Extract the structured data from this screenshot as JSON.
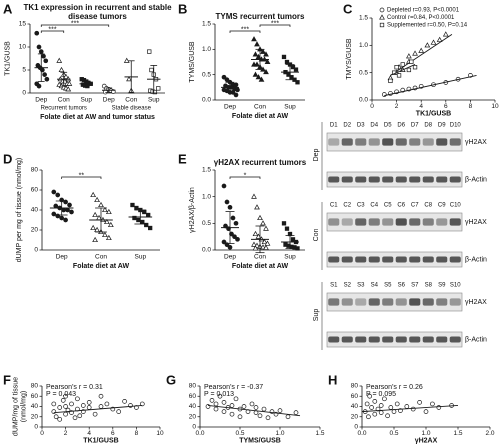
{
  "chart_data": [
    {
      "type": "dotplot",
      "panel": "A",
      "title": "TK1 expression in recurrent and stable disease tumors",
      "ylabel": "TK1/GUSB",
      "xlabel": "Folate diet at AW and tumor status",
      "categories": [
        "Dep",
        "Con",
        "Sup",
        "Dep",
        "Con",
        "Sup"
      ],
      "values": [
        [
          13,
          10,
          9,
          8,
          7,
          6,
          5.5,
          5,
          4,
          3,
          2,
          1.5
        ],
        [
          7,
          5,
          4,
          3.5,
          3,
          3,
          2.5,
          2.5,
          2,
          2,
          1.8,
          1.5,
          1.2,
          1,
          0.8
        ],
        [
          3,
          2.8,
          2.5,
          2.2,
          2,
          1.8,
          1.6,
          1.5
        ],
        [
          1.5,
          1,
          0.8,
          0.5,
          0.3,
          0.2
        ],
        [
          7,
          3,
          0.5
        ],
        [
          9,
          5,
          4,
          3,
          1,
          0.5,
          0.3,
          0.2
        ]
      ],
      "means": [
        5.5,
        3,
        2,
        0.6,
        3.5,
        3
      ],
      "sd": [
        3,
        1.5,
        0.6,
        0.5,
        3.5,
        3
      ],
      "markers": [
        "circle",
        "triangle",
        "square",
        "circle",
        "triangle",
        "square"
      ],
      "filled": [
        true,
        false,
        true,
        false,
        false,
        false
      ],
      "ylim": [
        0,
        15
      ],
      "yticks": [
        0,
        5,
        10,
        15
      ],
      "groups": [
        {
          "label": "Recurrent tumors",
          "from": 0,
          "to": 2
        },
        {
          "label": "Stable disease",
          "from": 3,
          "to": 5
        }
      ],
      "significance": [
        {
          "pair": [
            0,
            1
          ],
          "label": "***"
        },
        {
          "pair": [
            0,
            3
          ],
          "label": "***"
        }
      ],
      "color": "#1a1a1a"
    },
    {
      "type": "dotplot",
      "panel": "B",
      "title": "TYMS recurrent tumors",
      "ylabel": "TYMS/GUSB",
      "xlabel": "Folate diet at AW",
      "categories": [
        "Dep",
        "Con",
        "Sup"
      ],
      "values": [
        [
          0.45,
          0.4,
          0.35,
          0.3,
          0.3,
          0.28,
          0.25,
          0.25,
          0.22,
          0.2,
          0.2,
          0.18,
          0.15,
          0.15,
          0.1
        ],
        [
          1.2,
          1.1,
          1.0,
          0.95,
          0.9,
          0.9,
          0.85,
          0.8,
          0.8,
          0.75,
          0.7,
          0.7,
          0.65,
          0.6,
          0.55,
          0.5,
          0.45,
          0.4
        ],
        [
          0.85,
          0.75,
          0.7,
          0.65,
          0.6,
          0.55,
          0.5,
          0.45,
          0.4,
          0.35
        ]
      ],
      "means": [
        0.25,
        0.8,
        0.55
      ],
      "sd": [
        0.1,
        0.2,
        0.15
      ],
      "markers": [
        "circle",
        "triangle",
        "square"
      ],
      "filled": [
        true,
        true,
        true
      ],
      "ylim": [
        0,
        1.5
      ],
      "yticks": [
        {
          "value": 0,
          "label": "0.0"
        },
        0.5,
        {
          "value": 1,
          "label": "1.0"
        },
        1.5
      ],
      "significance": [
        {
          "pair": [
            0,
            1
          ],
          "label": "***"
        },
        {
          "pair": [
            1,
            2
          ],
          "label": "***"
        }
      ],
      "color": "#1a1a1a"
    },
    {
      "type": "scatter",
      "panel": "C",
      "ylabel": "TMYS/GUSB",
      "xlabel": "TK1/GUSB",
      "xlim": [
        0,
        10
      ],
      "xticks": [
        0,
        2,
        4,
        6,
        8,
        10
      ],
      "ylim": [
        0,
        1.5
      ],
      "yticks": [
        {
          "value": 0,
          "label": "0.0"
        },
        0.5,
        {
          "value": 1,
          "label": "1.0"
        },
        1.5
      ],
      "legend": "upper left",
      "series": [
        {
          "name": "Depleted r=0.93, P<0.0001",
          "marker": "circle",
          "x": [
            1,
            1.5,
            2,
            2.5,
            3,
            3.5,
            4,
            5,
            6,
            7,
            8
          ],
          "values": [
            0.1,
            0.12,
            0.15,
            0.18,
            0.2,
            0.22,
            0.25,
            0.28,
            0.32,
            0.38,
            0.45
          ],
          "fit": {
            "x": [
              1,
              8.5
            ],
            "values": [
              0.08,
              0.45
            ]
          }
        },
        {
          "name": "Control r=0.84, P<0.0001",
          "marker": "triangle",
          "x": [
            1.5,
            2,
            2.2,
            2.5,
            3,
            3,
            3.5,
            4,
            4.5,
            5,
            5.5,
            6
          ],
          "values": [
            0.4,
            0.5,
            0.6,
            0.55,
            0.7,
            0.8,
            0.85,
            0.9,
            1.0,
            1.05,
            1.1,
            1.2
          ],
          "fit": {
            "x": [
              1.5,
              6.5
            ],
            "values": [
              0.45,
              1.2
            ]
          }
        },
        {
          "name": "Supplemented r=0.50, P=0.14",
          "marker": "square",
          "x": [
            1.5,
            1.8,
            2,
            2.2,
            2.5,
            3,
            3.2,
            3.5
          ],
          "values": [
            0.35,
            0.5,
            0.6,
            0.45,
            0.65,
            0.55,
            0.7,
            0.6
          ],
          "fit": {
            "x": [
              1.5,
              3.5
            ],
            "values": [
              0.45,
              0.65
            ]
          }
        }
      ],
      "color": "#1a1a1a"
    },
    {
      "type": "dotplot",
      "panel": "D",
      "ylabel": "dUMP per mg of tissue (nmol/mg)",
      "xlabel": "Folate diet at AW",
      "categories": [
        "Dep",
        "Con",
        "Sup"
      ],
      "values": [
        [
          58,
          55,
          50,
          48,
          45,
          44,
          42,
          40,
          40,
          38,
          36,
          34,
          32,
          30
        ],
        [
          55,
          50,
          45,
          40,
          38,
          35,
          32,
          30,
          28,
          25,
          22,
          20,
          18,
          15,
          12,
          10
        ],
        [
          45,
          42,
          40,
          38,
          35,
          32,
          30,
          28,
          25,
          22
        ]
      ],
      "means": [
        42,
        30,
        33
      ],
      "sd": [
        7,
        12,
        7
      ],
      "markers": [
        "circle",
        "triangle",
        "square"
      ],
      "filled": [
        true,
        false,
        true
      ],
      "ylim": [
        0,
        80
      ],
      "yticks": [
        0,
        20,
        40,
        60,
        80
      ],
      "significance": [
        {
          "pair": [
            0,
            1
          ],
          "label": "**"
        }
      ],
      "color": "#1a1a1a"
    },
    {
      "type": "dotplot",
      "panel": "E",
      "title": "γH2AX recurrent tumors",
      "ylabel": "γH2AX/β-Actin",
      "xlabel": "Folate diet at AW",
      "categories": [
        "Dep",
        "Con",
        "Sup"
      ],
      "values": [
        [
          1.2,
          0.9,
          0.8,
          0.6,
          0.5,
          0.45,
          0.4,
          0.3,
          0.25,
          0.2,
          0.15,
          0.1,
          0.05
        ],
        [
          1.0,
          0.8,
          0.6,
          0.5,
          0.4,
          0.3,
          0.25,
          0.2,
          0.15,
          0.12,
          0.1,
          0.08,
          0.06,
          0.05,
          0.04,
          0.03
        ],
        [
          0.5,
          0.4,
          0.3,
          0.2,
          0.15,
          0.1,
          0.08,
          0.06,
          0.05,
          0.03
        ]
      ],
      "means": [
        0.42,
        0.2,
        0.15
      ],
      "sd": [
        0.3,
        0.25,
        0.12
      ],
      "markers": [
        "circle",
        "triangle",
        "square"
      ],
      "filled": [
        true,
        false,
        true
      ],
      "ylim": [
        0,
        1.5
      ],
      "yticks": [
        {
          "value": 0,
          "label": "0.0"
        },
        0.5,
        {
          "value": 1,
          "label": "1.0"
        },
        1.5
      ],
      "significance": [
        {
          "pair": [
            0,
            1
          ],
          "label": "*"
        }
      ],
      "color": "#1a1a1a"
    },
    {
      "type": "scatter",
      "panel": "F",
      "ylabel": "dUMP/mg of tissue (nmol/mg)",
      "xlabel": "TK1/GUSB",
      "xlim": [
        0,
        10
      ],
      "xticks": [
        0,
        2,
        4,
        6,
        8,
        10
      ],
      "ylim": [
        0,
        80
      ],
      "yticks": [
        0,
        20,
        40,
        60,
        80
      ],
      "annotations": [
        "Pearson's r = 0.31",
        "P = 0.043"
      ],
      "series": [
        {
          "marker": "circle",
          "x": [
            1,
            1,
            1.2,
            1.5,
            1.5,
            1.8,
            2,
            2,
            2,
            2.2,
            2.5,
            2.5,
            2.8,
            3,
            3,
            3.2,
            3.5,
            3.5,
            4,
            4,
            4.5,
            5,
            5,
            5.5,
            6,
            6.5,
            7,
            7.5,
            8,
            8.5
          ],
          "values": [
            30,
            45,
            20,
            38,
            15,
            52,
            25,
            40,
            60,
            33,
            28,
            45,
            18,
            35,
            55,
            22,
            42,
            30,
            38,
            48,
            25,
            40,
            60,
            45,
            35,
            30,
            50,
            42,
            38,
            45
          ],
          "fit": {
            "x": [
              1,
              8.5
            ],
            "values": [
              28,
              42
            ]
          }
        }
      ],
      "color": "#1a1a1a"
    },
    {
      "type": "scatter",
      "panel": "G",
      "xlabel": "TYMS/GUSB",
      "xlim": [
        0,
        1.5
      ],
      "xticks": [
        {
          "value": 0,
          "label": "0.0"
        },
        0.5,
        {
          "value": 1,
          "label": "1.0"
        },
        1.5
      ],
      "ylim": [
        0,
        80
      ],
      "yticks": [
        0,
        20,
        40,
        60,
        80
      ],
      "annotations": [
        "Pearson's r = -0.37",
        "P = 0.013"
      ],
      "series": [
        {
          "marker": "circle",
          "x": [
            0.1,
            0.15,
            0.2,
            0.2,
            0.25,
            0.3,
            0.3,
            0.35,
            0.4,
            0.4,
            0.45,
            0.5,
            0.5,
            0.55,
            0.6,
            0.65,
            0.7,
            0.7,
            0.75,
            0.8,
            0.85,
            0.9,
            0.95,
            1.0,
            1.1,
            1.2
          ],
          "values": [
            40,
            52,
            35,
            45,
            60,
            30,
            48,
            38,
            42,
            25,
            55,
            35,
            20,
            40,
            30,
            45,
            28,
            38,
            22,
            35,
            18,
            30,
            25,
            32,
            20,
            28
          ],
          "fit": {
            "x": [
              0.1,
              1.25
            ],
            "values": [
              42,
              22
            ]
          }
        }
      ],
      "color": "#1a1a1a"
    },
    {
      "type": "scatter",
      "panel": "H",
      "xlabel": "γH2AX",
      "xlim": [
        0,
        2
      ],
      "xticks": [
        {
          "value": 0,
          "label": "0.0"
        },
        0.5,
        {
          "value": 1,
          "label": "1.0"
        },
        1.5,
        {
          "value": 2,
          "label": "2.0"
        }
      ],
      "ylim": [
        0,
        80
      ],
      "yticks": [
        0,
        20,
        40,
        60,
        80
      ],
      "annotations": [
        "Pearson's r = 0.26",
        "P = 0.095"
      ],
      "series": [
        {
          "marker": "circle",
          "x": [
            0.05,
            0.08,
            0.1,
            0.12,
            0.15,
            0.2,
            0.2,
            0.25,
            0.3,
            0.3,
            0.35,
            0.4,
            0.45,
            0.5,
            0.55,
            0.6,
            0.7,
            0.8,
            0.9,
            1.0,
            1.1,
            1.2,
            1.4
          ],
          "values": [
            30,
            45,
            20,
            60,
            38,
            25,
            50,
            35,
            28,
            42,
            55,
            22,
            38,
            30,
            45,
            32,
            40,
            35,
            48,
            30,
            45,
            38,
            42
          ],
          "fit": {
            "x": [
              0,
              1.5
            ],
            "values": [
              30,
              42
            ]
          }
        }
      ],
      "color": "#1a1a1a"
    }
  ],
  "blot": {
    "bands": [
      "γH2AX",
      "β-Actin"
    ],
    "groups": [
      {
        "label": "Dep",
        "lanes": [
          "D1",
          "D2",
          "D3",
          "D4",
          "D5",
          "D6",
          "D7",
          "D8",
          "D9",
          "D10"
        ]
      },
      {
        "label": "Con",
        "lanes": [
          "C1",
          "C2",
          "C3",
          "C4",
          "C5",
          "C6",
          "C7",
          "C8",
          "C9",
          "C10"
        ]
      },
      {
        "label": "Sup",
        "lanes": [
          "S1",
          "S2",
          "S3",
          "S4",
          "S5",
          "S6",
          "S7",
          "S8",
          "S9",
          "S10"
        ]
      }
    ]
  }
}
